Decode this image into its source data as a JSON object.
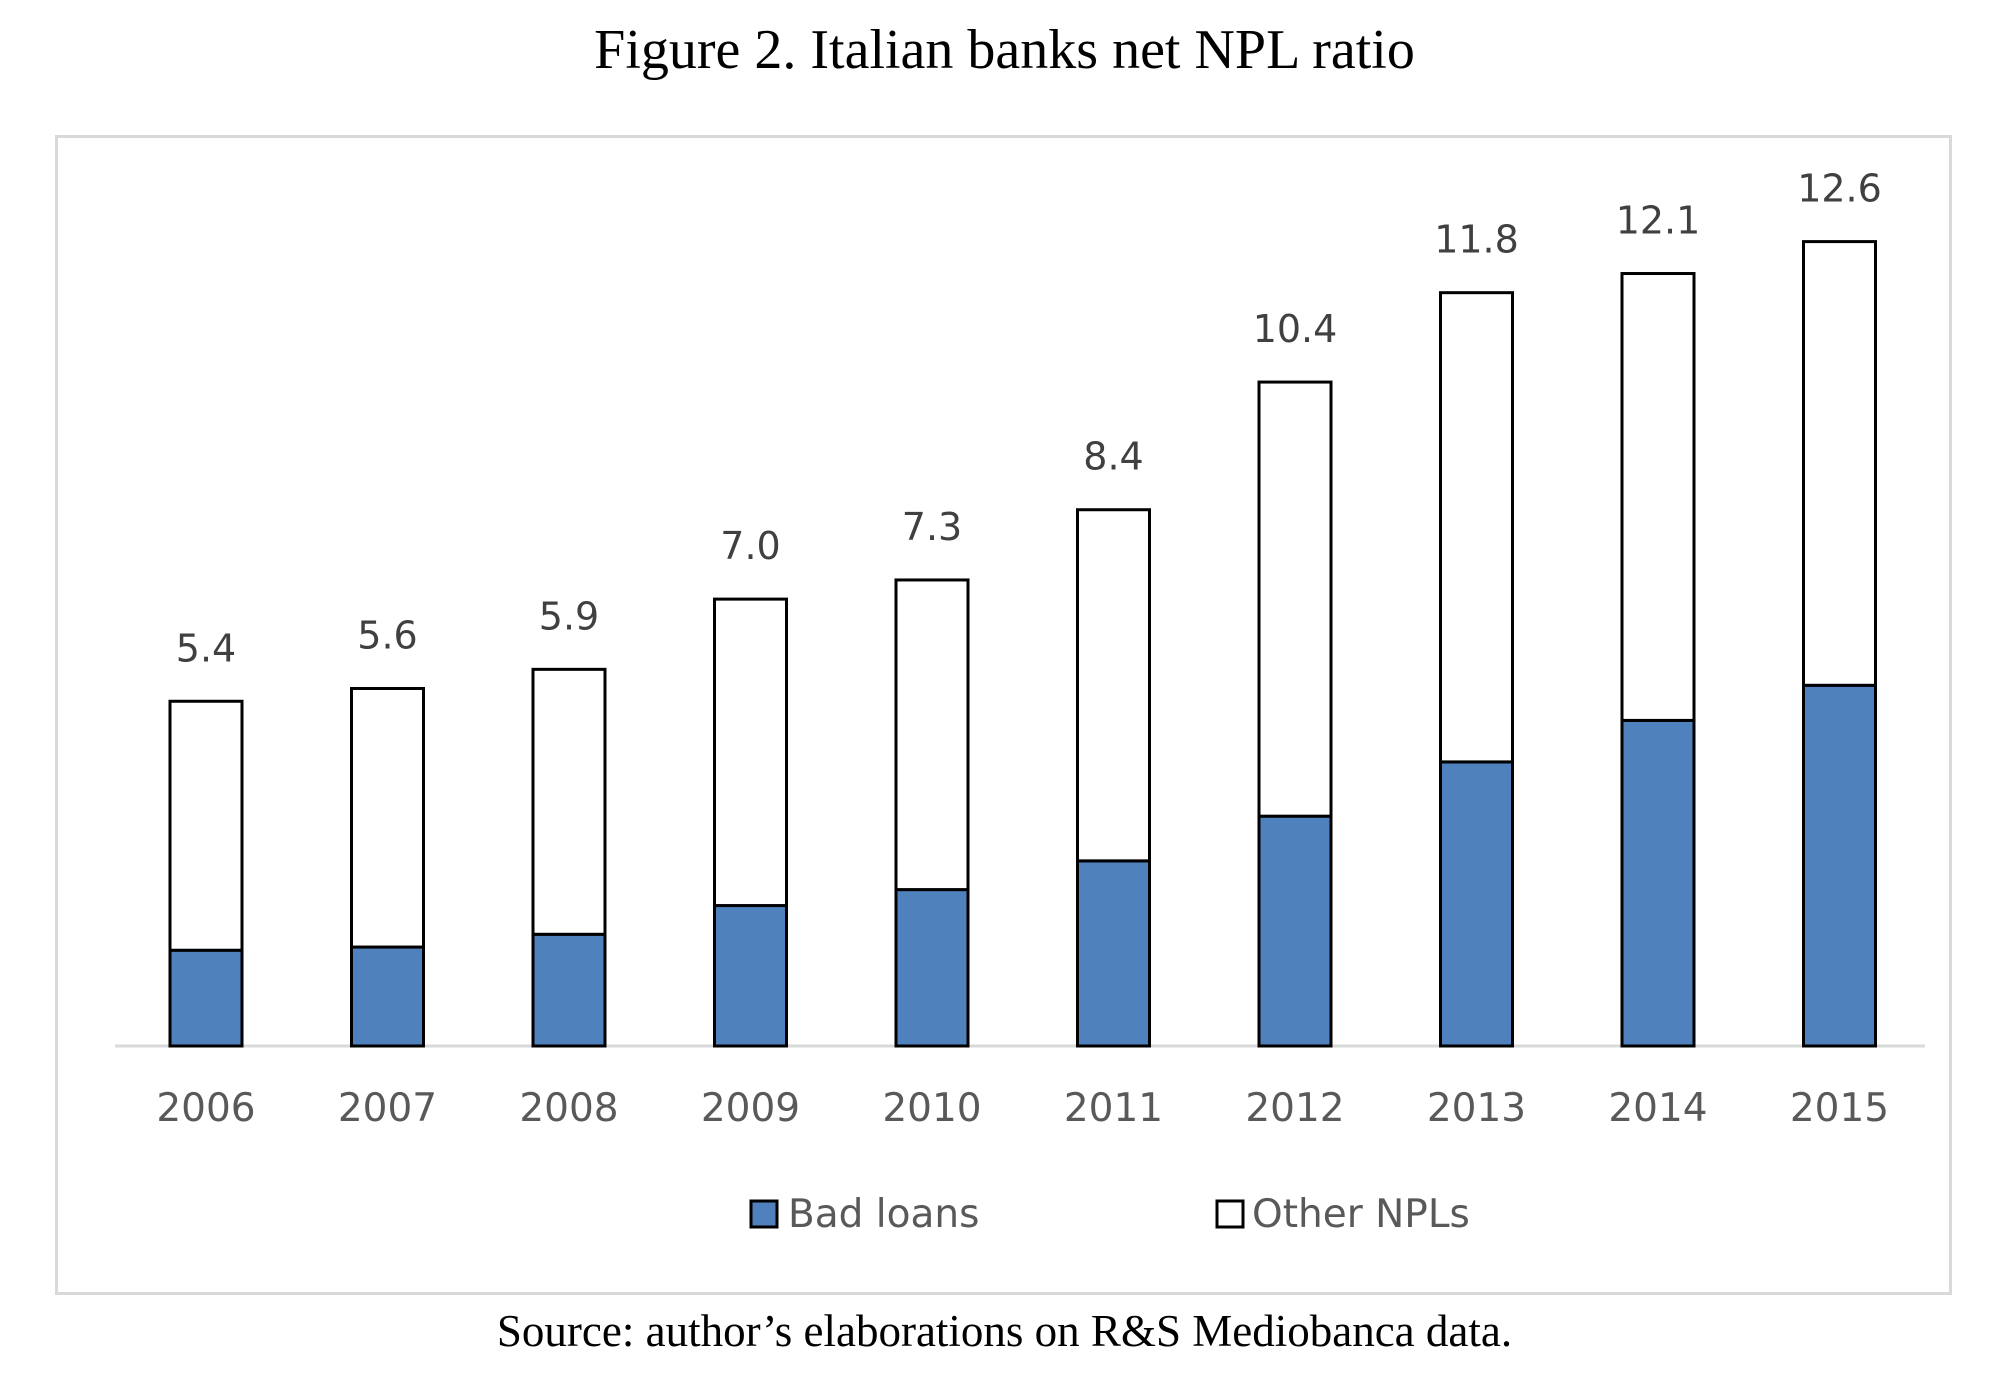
{
  "figure": {
    "title": "Figure 2. Italian banks net NPL ratio",
    "source": "Source: author’s elaborations on R&S Mediobanca data."
  },
  "chart_data": {
    "type": "bar",
    "stacked": true,
    "categories": [
      "2006",
      "2007",
      "2008",
      "2009",
      "2010",
      "2011",
      "2012",
      "2013",
      "2014",
      "2015"
    ],
    "series": [
      {
        "name": "Bad loans",
        "color": "#4f81bd",
        "values": [
          1.5,
          1.55,
          1.75,
          2.2,
          2.45,
          2.9,
          3.6,
          4.45,
          5.1,
          5.65
        ]
      },
      {
        "name": "Other NPLs",
        "color": "#ffffff",
        "values": [
          3.9,
          4.05,
          4.15,
          4.8,
          4.85,
          5.5,
          6.8,
          7.35,
          7.0,
          6.95
        ]
      }
    ],
    "totals": [
      "5.4",
      "5.6",
      "5.9",
      "7.0",
      "7.3",
      "8.4",
      "10.4",
      "11.8",
      "12.1",
      "12.6"
    ],
    "ylim": [
      0,
      13.8
    ],
    "grid": false,
    "legend_position": "bottom"
  }
}
